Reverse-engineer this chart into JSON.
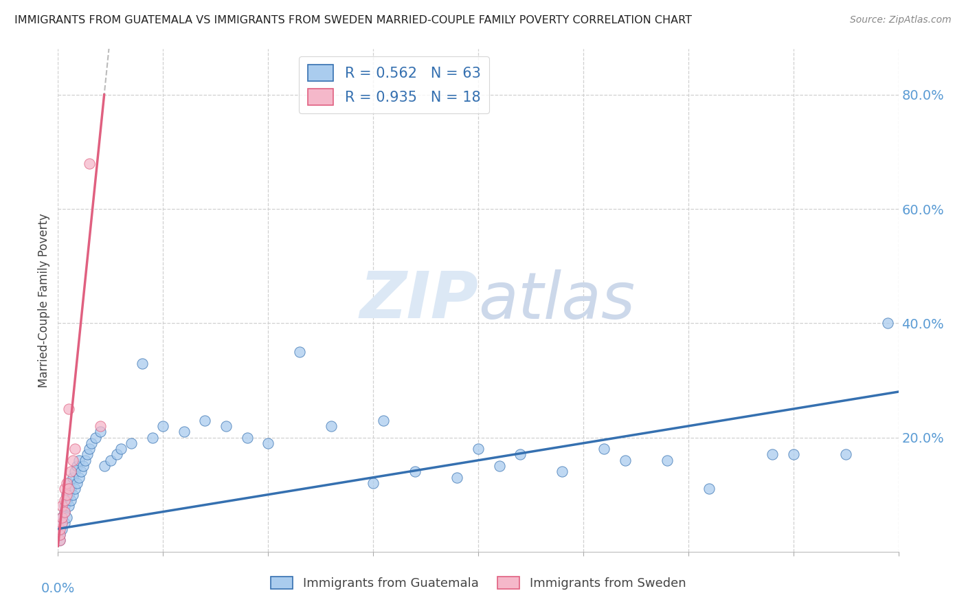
{
  "title": "IMMIGRANTS FROM GUATEMALA VS IMMIGRANTS FROM SWEDEN MARRIED-COUPLE FAMILY POVERTY CORRELATION CHART",
  "source": "Source: ZipAtlas.com",
  "ylabel": "Married-Couple Family Poverty",
  "ytick_vals": [
    0.2,
    0.4,
    0.6,
    0.8
  ],
  "xlim": [
    0.0,
    0.4
  ],
  "ylim": [
    0.0,
    0.88
  ],
  "watermark_zip": "ZIP",
  "watermark_atlas": "atlas",
  "legend_label1": "R = 0.562   N = 63",
  "legend_label2": "R = 0.935   N = 18",
  "bottom_label1": "Immigrants from Guatemala",
  "bottom_label2": "Immigrants from Sweden",
  "color_guatemala": "#aaccee",
  "color_sweden": "#f5b8ca",
  "color_trend_guatemala": "#3570b0",
  "color_trend_sweden": "#e06080",
  "color_axis": "#5a9bd4",
  "color_grid": "#d0d0d0",
  "color_legend_text": "#3570b0",
  "background": "#ffffff",
  "watermark_color": "#dce8f5",
  "guatemala_x": [
    0.001,
    0.001,
    0.002,
    0.002,
    0.002,
    0.003,
    0.003,
    0.003,
    0.004,
    0.004,
    0.004,
    0.005,
    0.005,
    0.005,
    0.006,
    0.006,
    0.007,
    0.007,
    0.008,
    0.008,
    0.009,
    0.009,
    0.01,
    0.01,
    0.011,
    0.012,
    0.013,
    0.014,
    0.015,
    0.016,
    0.018,
    0.02,
    0.022,
    0.025,
    0.028,
    0.03,
    0.035,
    0.04,
    0.045,
    0.05,
    0.06,
    0.07,
    0.08,
    0.09,
    0.1,
    0.115,
    0.13,
    0.15,
    0.17,
    0.19,
    0.21,
    0.24,
    0.27,
    0.29,
    0.155,
    0.2,
    0.22,
    0.26,
    0.31,
    0.34,
    0.35,
    0.375,
    0.395
  ],
  "guatemala_y": [
    0.02,
    0.03,
    0.04,
    0.05,
    0.06,
    0.05,
    0.07,
    0.08,
    0.06,
    0.09,
    0.1,
    0.08,
    0.1,
    0.12,
    0.09,
    0.11,
    0.1,
    0.13,
    0.11,
    0.14,
    0.12,
    0.15,
    0.13,
    0.16,
    0.14,
    0.15,
    0.16,
    0.17,
    0.18,
    0.19,
    0.2,
    0.21,
    0.15,
    0.16,
    0.17,
    0.18,
    0.19,
    0.33,
    0.2,
    0.22,
    0.21,
    0.23,
    0.22,
    0.2,
    0.19,
    0.35,
    0.22,
    0.12,
    0.14,
    0.13,
    0.15,
    0.14,
    0.16,
    0.16,
    0.23,
    0.18,
    0.17,
    0.18,
    0.11,
    0.17,
    0.17,
    0.17,
    0.4
  ],
  "sweden_x": [
    0.001,
    0.001,
    0.001,
    0.002,
    0.002,
    0.002,
    0.003,
    0.003,
    0.003,
    0.004,
    0.004,
    0.005,
    0.005,
    0.006,
    0.007,
    0.008,
    0.015,
    0.02
  ],
  "sweden_y": [
    0.02,
    0.03,
    0.04,
    0.05,
    0.06,
    0.08,
    0.07,
    0.09,
    0.11,
    0.1,
    0.12,
    0.11,
    0.25,
    0.14,
    0.16,
    0.18,
    0.68,
    0.22
  ],
  "trend_guatemala_x0": 0.0,
  "trend_guatemala_y0": 0.04,
  "trend_guatemala_x1": 0.4,
  "trend_guatemala_y1": 0.28,
  "trend_sweden_x0": 0.0,
  "trend_sweden_y0": 0.01,
  "trend_sweden_x1": 0.022,
  "trend_sweden_y1": 0.8
}
